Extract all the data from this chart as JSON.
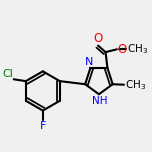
{
  "bg_color": "#f0f0f0",
  "bond_color": "#000000",
  "bond_width": 1.5,
  "cl_color": "#008000",
  "f_color": "#0000ff",
  "o_color": "#ff0000",
  "n_color": "#0000ff",
  "figsize": [
    1.52,
    1.52
  ],
  "dpi": 100,
  "xlim": [
    -0.8,
    0.72
  ],
  "ylim": [
    -0.6,
    0.52
  ]
}
